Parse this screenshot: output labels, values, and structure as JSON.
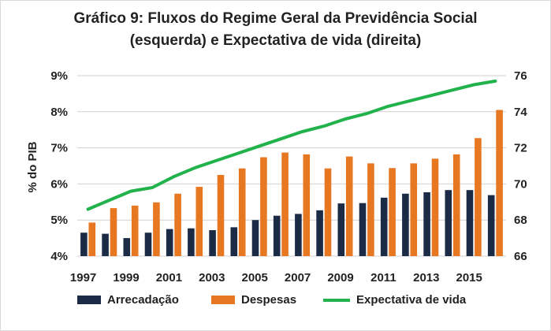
{
  "chart_data": {
    "type": "bar+line",
    "title_line1": "Gráfico 9: Fluxos do Regime Geral da Previdência Social",
    "title_line2": "(esquerda) e Expectativa de vida (direita)",
    "ylabel": "% do PIB",
    "ylim_left": [
      4,
      9
    ],
    "ylim_right": [
      66,
      76
    ],
    "yticks_left": [
      "4%",
      "5%",
      "6%",
      "7%",
      "8%",
      "9%"
    ],
    "yticks_right": [
      "66",
      "68",
      "70",
      "72",
      "74",
      "76"
    ],
    "x": [
      1997,
      1998,
      1999,
      2000,
      2001,
      2002,
      2003,
      2004,
      2005,
      2006,
      2007,
      2008,
      2009,
      2010,
      2011,
      2012,
      2013,
      2014,
      2015,
      2016
    ],
    "xtick_labels": [
      "1997",
      "1999",
      "2001",
      "2003",
      "2005",
      "2007",
      "2009",
      "2011",
      "2013",
      "2015"
    ],
    "series": [
      {
        "name": "Arrecadação",
        "axis": "left",
        "kind": "bar",
        "color": "#1c2b45",
        "values": [
          4.65,
          4.62,
          4.5,
          4.65,
          4.75,
          4.77,
          4.72,
          4.8,
          5.0,
          5.12,
          5.17,
          5.27,
          5.46,
          5.47,
          5.62,
          5.73,
          5.77,
          5.83,
          5.83,
          5.69
        ]
      },
      {
        "name": "Despesas",
        "axis": "left",
        "kind": "bar",
        "color": "#e87722",
        "values": [
          4.93,
          5.33,
          5.4,
          5.49,
          5.73,
          5.92,
          6.25,
          6.43,
          6.74,
          6.87,
          6.82,
          6.43,
          6.76,
          6.57,
          6.44,
          6.57,
          6.7,
          6.82,
          7.27,
          8.05
        ]
      },
      {
        "name": "Expectativa de vida",
        "axis": "right",
        "kind": "line",
        "color": "#21b24b",
        "values": [
          68.6,
          69.1,
          69.6,
          69.8,
          70.4,
          70.9,
          71.3,
          71.7,
          72.1,
          72.5,
          72.9,
          73.2,
          73.6,
          73.9,
          74.3,
          74.6,
          74.9,
          75.2,
          75.5,
          75.7
        ]
      }
    ],
    "legend_position": "bottom"
  }
}
